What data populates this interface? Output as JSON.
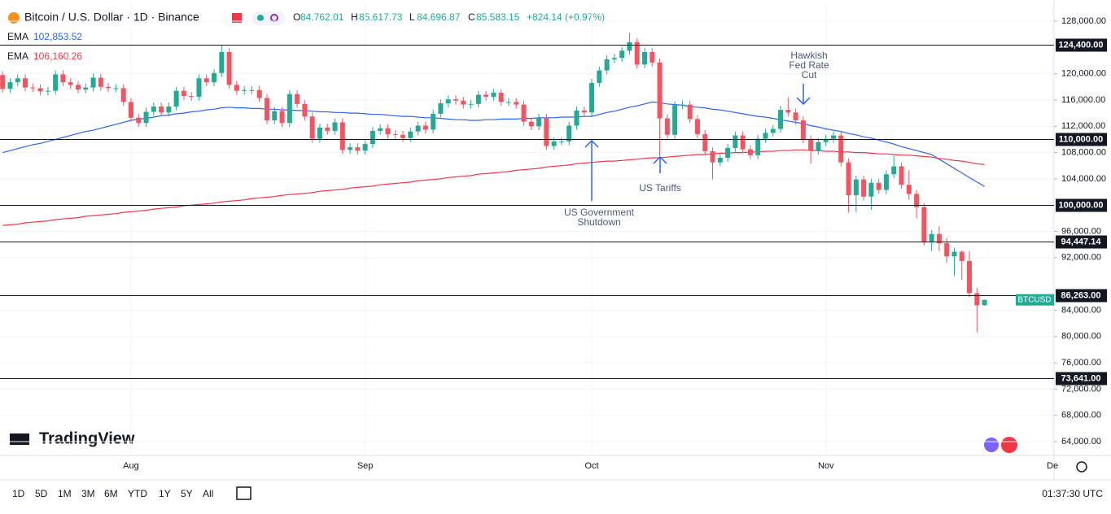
{
  "header": {
    "title": "Bitcoin / U.S. Dollar · 1D · Binance",
    "ohlc": [
      {
        "key": "O",
        "value": "84,762.01"
      },
      {
        "key": "H",
        "value": "85,617.73"
      },
      {
        "key": "L",
        "value": "84,696.87"
      },
      {
        "key": "C",
        "value": "85,583.15"
      }
    ],
    "change": "+824.14 (+0.97%)"
  },
  "chart_data": {
    "type": "candlestick",
    "categories": [
      null,
      null,
      null,
      null,
      null,
      null,
      null,
      null,
      null,
      null,
      null,
      null,
      null,
      null,
      null,
      null,
      null,
      "Aug",
      null,
      null,
      null,
      null,
      null,
      null,
      null,
      null,
      null,
      null,
      null,
      null,
      null,
      null,
      null,
      null,
      null,
      null,
      null,
      null,
      null,
      null,
      null,
      null,
      null,
      null,
      null,
      null,
      null,
      null,
      "Sep",
      null,
      null,
      null,
      null,
      null,
      null,
      null,
      null,
      null,
      null,
      null,
      null,
      null,
      null,
      null,
      null,
      null,
      null,
      null,
      null,
      null,
      null,
      null,
      null,
      null,
      null,
      null,
      null,
      null,
      "Oct",
      null,
      null,
      null,
      null,
      null,
      null,
      null,
      null,
      null,
      null,
      null,
      null,
      null,
      null,
      null,
      null,
      null,
      null,
      null,
      null,
      null,
      null,
      null,
      null,
      null,
      null,
      null,
      null,
      null,
      null,
      "Nov",
      null,
      null,
      null,
      null,
      null,
      null,
      null,
      null,
      null,
      null,
      null,
      null,
      null,
      null,
      null,
      null,
      null,
      null,
      null,
      null,
      null,
      null,
      null,
      null,
      null,
      null,
      null,
      null,
      null,
      "De"
    ],
    "open": [
      119800,
      117700,
      118700,
      119300,
      117900,
      117800,
      117300,
      117400,
      119900,
      118700,
      118300,
      117600,
      117900,
      119400,
      118000,
      117800,
      117800,
      115700,
      113300,
      112500,
      114200,
      115000,
      114100,
      115000,
      117400,
      116600,
      116500,
      119300,
      118700,
      120100,
      123300,
      118300,
      117400,
      117500,
      117500,
      116300,
      112900,
      114300,
      112500,
      116900,
      115400,
      113500,
      110100,
      111800,
      111300,
      112600,
      108400,
      108800,
      108300,
      109300,
      111300,
      111700,
      110800,
      110700,
      110200,
      111200,
      112100,
      111500,
      113900,
      115500,
      116100,
      115900,
      115300,
      115400,
      116800,
      116500,
      117100,
      115700,
      115700,
      115300,
      112700,
      112000,
      113300,
      109000,
      109700,
      109700,
      112100,
      114400,
      114100,
      118600,
      120500,
      122200,
      122400,
      123500,
      124800,
      121400,
      123300,
      121700,
      113200,
      110700,
      115200,
      115300,
      113100,
      110800,
      108200,
      106500,
      107200,
      108700,
      110600,
      108500,
      107600,
      110100,
      111000,
      111600,
      114500,
      114100,
      112900,
      110000,
      108300,
      109600,
      110100,
      110600,
      106500,
      101500,
      103900,
      101300,
      103400,
      102300,
      104700,
      105900,
      103100,
      101700,
      99700,
      94400,
      95600,
      94200,
      92200,
      92900,
      91500,
      86600,
      84762.01,
      null,
      null,
      null,
      null,
      null,
      null,
      null,
      null,
      null
    ],
    "high": [
      120400,
      119300,
      119900,
      119900,
      118500,
      118400,
      118000,
      120500,
      120500,
      119300,
      118900,
      118500,
      120000,
      120000,
      118600,
      118400,
      118400,
      116300,
      113900,
      114800,
      115600,
      115600,
      115600,
      118000,
      118000,
      117200,
      119900,
      119900,
      120700,
      124400,
      123900,
      118900,
      118100,
      118100,
      118100,
      116900,
      114900,
      114900,
      117500,
      117500,
      116000,
      114100,
      112400,
      112400,
      113200,
      113200,
      109400,
      109400,
      109900,
      111900,
      112300,
      112300,
      111400,
      111300,
      111800,
      112700,
      112700,
      114500,
      116100,
      116700,
      116700,
      116500,
      116000,
      117400,
      117400,
      117700,
      117700,
      116300,
      116300,
      115900,
      113300,
      113900,
      113900,
      110300,
      110300,
      112700,
      115000,
      115000,
      119200,
      121100,
      122800,
      123000,
      124100,
      126200,
      125400,
      123900,
      123900,
      122300,
      113800,
      115800,
      115900,
      115900,
      113700,
      111400,
      108800,
      107800,
      109300,
      111200,
      111200,
      109100,
      110700,
      111600,
      112200,
      115100,
      116400,
      114700,
      113500,
      110600,
      110200,
      110700,
      111200,
      111200,
      107100,
      104500,
      104500,
      104000,
      104000,
      105300,
      107500,
      106500,
      105300,
      102300,
      100300,
      96200,
      96800,
      95000,
      93500,
      93100,
      93000,
      87400,
      85617.73,
      null,
      null,
      null,
      null,
      null,
      null,
      null,
      null,
      null
    ],
    "low": [
      117100,
      117100,
      118100,
      117300,
      117200,
      116700,
      116700,
      116800,
      118100,
      117700,
      117000,
      117000,
      117300,
      117400,
      117200,
      117200,
      115100,
      112700,
      111900,
      111900,
      113600,
      113500,
      113500,
      114400,
      116000,
      115900,
      115900,
      118100,
      118100,
      119500,
      117700,
      116800,
      116800,
      116900,
      115700,
      112300,
      112300,
      111900,
      111900,
      114800,
      112900,
      109500,
      109500,
      110700,
      110700,
      107800,
      107800,
      107700,
      107700,
      108700,
      110700,
      110200,
      110100,
      109600,
      109600,
      110600,
      110900,
      110900,
      113300,
      114900,
      115300,
      114700,
      114700,
      114800,
      115900,
      115900,
      115100,
      115100,
      114700,
      112100,
      111400,
      111400,
      108400,
      108400,
      109100,
      109100,
      111500,
      113500,
      113500,
      118000,
      119900,
      121600,
      121800,
      122900,
      120800,
      120800,
      121100,
      107500,
      110100,
      110100,
      114600,
      112500,
      110200,
      107600,
      103900,
      105900,
      106600,
      108100,
      107900,
      107000,
      107000,
      109500,
      110400,
      111000,
      113500,
      112300,
      109400,
      106300,
      107700,
      109000,
      109500,
      105900,
      98900,
      98900,
      100700,
      99300,
      101700,
      101700,
      104100,
      102500,
      100800,
      98000,
      93800,
      93000,
      93000,
      91200,
      89200,
      88600,
      86000,
      80600,
      84696.87,
      null,
      null,
      null,
      null,
      null,
      null,
      null,
      null,
      null
    ],
    "close": [
      117700,
      118700,
      119300,
      117900,
      117800,
      117300,
      117400,
      119900,
      118700,
      118300,
      117600,
      117900,
      119400,
      118000,
      117800,
      117800,
      115700,
      113300,
      112500,
      114200,
      115000,
      114100,
      115000,
      117400,
      116600,
      116500,
      119300,
      118700,
      120100,
      123300,
      118300,
      117400,
      117500,
      117500,
      116300,
      112900,
      114300,
      112500,
      116900,
      115400,
      113500,
      110100,
      111800,
      111300,
      112600,
      108400,
      108800,
      108300,
      109300,
      111300,
      111700,
      110800,
      110700,
      110200,
      111200,
      112100,
      111500,
      113900,
      115500,
      116100,
      115900,
      115300,
      115400,
      116800,
      116500,
      117100,
      115700,
      115700,
      115300,
      112700,
      112000,
      113300,
      109000,
      109700,
      109700,
      112100,
      114400,
      114100,
      118600,
      120500,
      122200,
      122400,
      123500,
      124800,
      121400,
      123300,
      121700,
      113200,
      110700,
      115200,
      115300,
      113100,
      110800,
      108200,
      106500,
      107200,
      108700,
      110600,
      108500,
      107600,
      110100,
      111000,
      111600,
      114500,
      114100,
      112900,
      110000,
      108300,
      109600,
      110100,
      110600,
      106500,
      101500,
      103900,
      101300,
      103400,
      102300,
      104700,
      105900,
      103100,
      101700,
      99700,
      94400,
      95600,
      94200,
      92200,
      92900,
      91500,
      86600,
      84759.01,
      85583.15,
      null,
      null,
      null,
      null,
      null,
      null,
      null,
      null,
      null
    ],
    "up_color": "#22ab94",
    "down_color": "#f7525f",
    "series": [
      {
        "name": "EMA",
        "color": "#2962ff",
        "legend_value": "102,853.52",
        "values": [
          108000,
          108300,
          108600,
          108900,
          109200,
          109400,
          109700,
          110000,
          110300,
          110600,
          110900,
          111200,
          111400,
          111700,
          112000,
          112300,
          112600,
          112900,
          113100,
          113200,
          113400,
          113600,
          113700,
          113900,
          114000,
          114200,
          114300,
          114500,
          114600,
          114800,
          114900,
          114800,
          114800,
          114700,
          114700,
          114600,
          114600,
          114500,
          114500,
          114400,
          114400,
          114300,
          114200,
          114200,
          114100,
          114100,
          114000,
          114000,
          113900,
          113800,
          113800,
          113700,
          113600,
          113500,
          113500,
          113400,
          113300,
          113300,
          113200,
          113100,
          113000,
          113000,
          112900,
          112900,
          113000,
          113000,
          113100,
          113100,
          113100,
          113200,
          113200,
          113300,
          113300,
          113300,
          113400,
          113400,
          113400,
          113500,
          113500,
          113800,
          114100,
          114300,
          114600,
          114900,
          115100,
          115400,
          115700,
          115600,
          115400,
          115300,
          115200,
          115000,
          114900,
          114800,
          114600,
          114500,
          114300,
          114100,
          113900,
          113700,
          113500,
          113400,
          113200,
          113000,
          112800,
          112600,
          112400,
          112100,
          111900,
          111600,
          111400,
          111200,
          110900,
          110700,
          110400,
          110200,
          109900,
          109600,
          109300,
          108900,
          108600,
          108300,
          108000,
          107700,
          107000,
          106300,
          105600,
          104900,
          104200,
          103500,
          102853.52,
          null,
          null,
          null,
          null,
          null,
          null,
          null,
          null,
          null
        ]
      },
      {
        "name": "EMA",
        "color": "#f23645",
        "legend_value": "106,160.26",
        "values": [
          96900,
          97000,
          97100,
          97300,
          97400,
          97500,
          97600,
          97800,
          97900,
          98000,
          98100,
          98300,
          98400,
          98500,
          98600,
          98700,
          98900,
          99000,
          99100,
          99200,
          99400,
          99500,
          99600,
          99700,
          99900,
          100000,
          100100,
          100200,
          100300,
          100500,
          100600,
          100700,
          100800,
          101000,
          101100,
          101200,
          101300,
          101500,
          101600,
          101700,
          101800,
          101900,
          102100,
          102200,
          102300,
          102400,
          102600,
          102700,
          102800,
          102900,
          103100,
          103200,
          103300,
          103400,
          103500,
          103700,
          103800,
          103900,
          104000,
          104200,
          104300,
          104400,
          104500,
          104700,
          104800,
          104900,
          105000,
          105100,
          105300,
          105400,
          105500,
          105600,
          105800,
          105900,
          106000,
          106100,
          106300,
          106400,
          106500,
          106600,
          106700,
          106700,
          106800,
          106900,
          107000,
          107100,
          107200,
          107200,
          107300,
          107400,
          107500,
          107600,
          107700,
          107700,
          107800,
          107900,
          107900,
          108000,
          108000,
          108100,
          108100,
          108200,
          108200,
          108300,
          108300,
          108400,
          108400,
          108300,
          108300,
          108200,
          108200,
          108100,
          108100,
          108000,
          108000,
          107900,
          107800,
          107800,
          107700,
          107600,
          107600,
          107500,
          107400,
          107300,
          107100,
          107000,
          106800,
          106700,
          106500,
          106300,
          106160.26,
          null,
          null,
          null,
          null,
          null,
          null,
          null,
          null,
          null
        ]
      }
    ],
    "ylim": [
      61900,
      130600
    ],
    "yticks": [
      {
        "value": 64000,
        "label": "64,000.00"
      },
      {
        "value": 68000,
        "label": "68,000.00"
      },
      {
        "value": 72000,
        "label": "72,000.00"
      },
      {
        "value": 76000,
        "label": "76,000.00"
      },
      {
        "value": 80000,
        "label": "80,000.00"
      },
      {
        "value": 84000,
        "label": "84,000.00"
      },
      {
        "value": 92000,
        "label": "92,000.00"
      },
      {
        "value": 96000,
        "label": "96,000.00"
      },
      {
        "value": 104000,
        "label": "104,000.00"
      },
      {
        "value": 108000,
        "label": "108,000.00"
      },
      {
        "value": 112000,
        "label": "112,000.00"
      },
      {
        "value": 116000,
        "label": "116,000.00"
      },
      {
        "value": 120000,
        "label": "120,000.00"
      },
      {
        "value": 128000,
        "label": "128,000.00"
      }
    ],
    "grid": true,
    "levels": [
      {
        "value": 124400,
        "label": "124,400.00"
      },
      {
        "value": 110000,
        "label": "110,000.00"
      },
      {
        "value": 100000,
        "label": "100,000.00"
      },
      {
        "value": 94447.14,
        "label": "94,447.14"
      },
      {
        "value": 86263,
        "label": "86,263.00"
      },
      {
        "value": 73641,
        "label": "73,641.00"
      }
    ],
    "symbol_tag": "BTCUSD",
    "annotations": [
      {
        "lines": [
          "US Government",
          "Shutdown"
        ]
      },
      {
        "lines": [
          "US Tariffs"
        ]
      },
      {
        "lines": [
          "Hawkish",
          "Fed Rate",
          "Cut"
        ]
      }
    ]
  },
  "toolbar": {
    "ranges": [
      "1D",
      "5D",
      "1M",
      "3M",
      "6M",
      "YTD",
      "1Y",
      "5Y",
      "All"
    ],
    "clock": "01:37:30 UTC"
  },
  "logo": "TradingView"
}
